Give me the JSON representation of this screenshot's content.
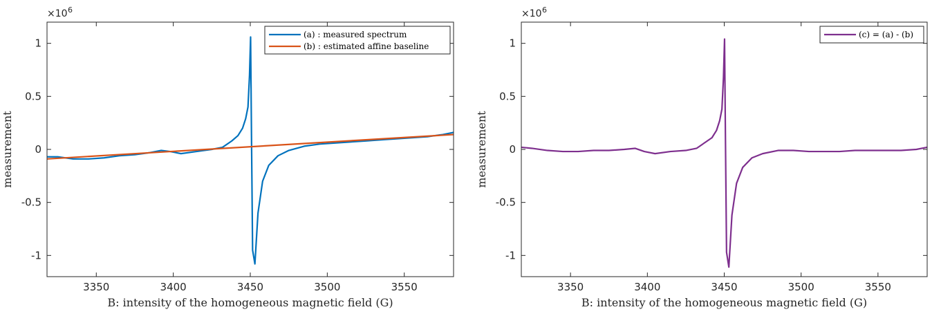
{
  "chart_data": [
    {
      "type": "line",
      "xlabel": "B: intensity of the homogeneous magnetic field (G)",
      "ylabel": "measurement",
      "y_exponent": "×10",
      "y_exponent_power": "6",
      "xlim": [
        3318,
        3582
      ],
      "ylim": [
        -1.2,
        1.2
      ],
      "xticks": [
        3350,
        3400,
        3450,
        3500,
        3550
      ],
      "xtick_labels": [
        "3350",
        "3400",
        "3450",
        "3500",
        "3550"
      ],
      "yticks": [
        -1,
        -0.5,
        0,
        0.5,
        1
      ],
      "ytick_labels": [
        "-1",
        "-0.5",
        "0",
        "0.5",
        "1"
      ],
      "grid": false,
      "legend_position": "top-right",
      "series": [
        {
          "name": "(a) : measured spectrum",
          "color": "#0072BD",
          "x": [
            3318,
            3325,
            3335,
            3345,
            3355,
            3365,
            3375,
            3385,
            3392,
            3398,
            3405,
            3415,
            3425,
            3432,
            3438,
            3442,
            3445,
            3447,
            3448.5,
            3449.5,
            3450.2,
            3450.8,
            3451.5,
            3453,
            3455,
            3458,
            3462,
            3468,
            3475,
            3485,
            3495,
            3505,
            3515,
            3525,
            3535,
            3545,
            3555,
            3565,
            3575,
            3582
          ],
          "y": [
            -0.07,
            -0.07,
            -0.09,
            -0.09,
            -0.08,
            -0.06,
            -0.05,
            -0.03,
            -0.01,
            -0.02,
            -0.04,
            -0.02,
            0.0,
            0.02,
            0.08,
            0.13,
            0.2,
            0.29,
            0.4,
            0.7,
            1.06,
            0.1,
            -0.95,
            -1.08,
            -0.6,
            -0.3,
            -0.15,
            -0.06,
            -0.01,
            0.03,
            0.05,
            0.06,
            0.07,
            0.08,
            0.09,
            0.1,
            0.11,
            0.12,
            0.14,
            0.16
          ]
        },
        {
          "name": "(b) : estimated affine baseline",
          "color": "#D95319",
          "x": [
            3318,
            3582
          ],
          "y": [
            -0.09,
            0.14
          ]
        }
      ]
    },
    {
      "type": "line",
      "xlabel": "B: intensity of the homogeneous magnetic field (G)",
      "ylabel": "measurement",
      "y_exponent": "×10",
      "y_exponent_power": "6",
      "xlim": [
        3318,
        3582
      ],
      "ylim": [
        -1.2,
        1.2
      ],
      "xticks": [
        3350,
        3400,
        3450,
        3500,
        3550
      ],
      "xtick_labels": [
        "3350",
        "3400",
        "3450",
        "3500",
        "3550"
      ],
      "yticks": [
        -1,
        -0.5,
        0,
        0.5,
        1
      ],
      "ytick_labels": [
        "-1",
        "-0.5",
        "0",
        "0.5",
        "1"
      ],
      "grid": false,
      "legend_position": "top-right",
      "series": [
        {
          "name": "(c) = (a) - (b)",
          "color": "#7E2F8E",
          "x": [
            3318,
            3325,
            3335,
            3345,
            3355,
            3365,
            3375,
            3385,
            3392,
            3398,
            3405,
            3415,
            3425,
            3432,
            3438,
            3442,
            3445,
            3447,
            3448.5,
            3449.5,
            3450.2,
            3450.8,
            3451.5,
            3453,
            3455,
            3458,
            3462,
            3468,
            3475,
            3485,
            3495,
            3505,
            3515,
            3525,
            3535,
            3545,
            3555,
            3565,
            3575,
            3582
          ],
          "y": [
            0.02,
            0.01,
            -0.01,
            -0.02,
            -0.02,
            -0.01,
            -0.01,
            0.0,
            0.01,
            -0.02,
            -0.04,
            -0.02,
            -0.01,
            0.01,
            0.07,
            0.11,
            0.18,
            0.27,
            0.38,
            0.68,
            1.04,
            0.08,
            -0.97,
            -1.11,
            -0.62,
            -0.32,
            -0.17,
            -0.08,
            -0.04,
            -0.01,
            -0.01,
            -0.02,
            -0.02,
            -0.02,
            -0.01,
            -0.01,
            -0.01,
            -0.01,
            0.0,
            0.02
          ]
        }
      ]
    }
  ]
}
